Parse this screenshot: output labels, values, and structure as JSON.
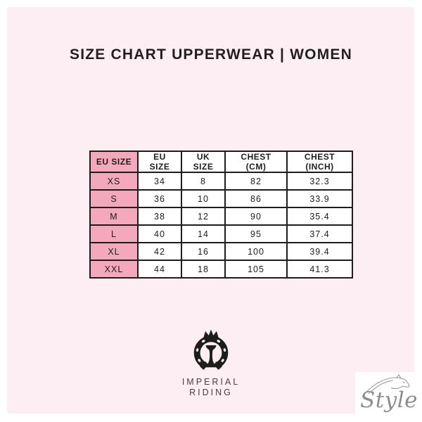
{
  "page_title": "SIZE CHART UPPERWEAR | WOMEN",
  "colors": {
    "page_margin": "#ffffff",
    "panel_background": "#fceef2",
    "accent_pink": "#f3a8bc",
    "table_border": "#1d1d1b",
    "title_text": "#231f20",
    "watermark_gray": "#8e8e8e"
  },
  "chart_data": {
    "type": "table",
    "title": "SIZE CHART UPPERWEAR | WOMEN",
    "columns": [
      "EU SIZE",
      "EU SIZE",
      "UK SIZE",
      "CHEST (CM)",
      "CHEST (INCH)"
    ],
    "rows": [
      [
        "XS",
        "34",
        "8",
        "82",
        "32.3"
      ],
      [
        "S",
        "36",
        "10",
        "86",
        "33.9"
      ],
      [
        "M",
        "38",
        "12",
        "90",
        "35.4"
      ],
      [
        "L",
        "40",
        "14",
        "95",
        "37.4"
      ],
      [
        "XL",
        "42",
        "16",
        "100",
        "39.4"
      ],
      [
        "XXL",
        "44",
        "18",
        "105",
        "41.3"
      ]
    ],
    "highlight_column": 0,
    "layout": {
      "grid": true,
      "header_row": true
    }
  },
  "brand": {
    "line1": "IMPERIAL",
    "line2": "RIDING",
    "logo_icon": "horseshoe-crown"
  },
  "watermark": {
    "text": "Style",
    "icon": "horse-head-sketch"
  }
}
